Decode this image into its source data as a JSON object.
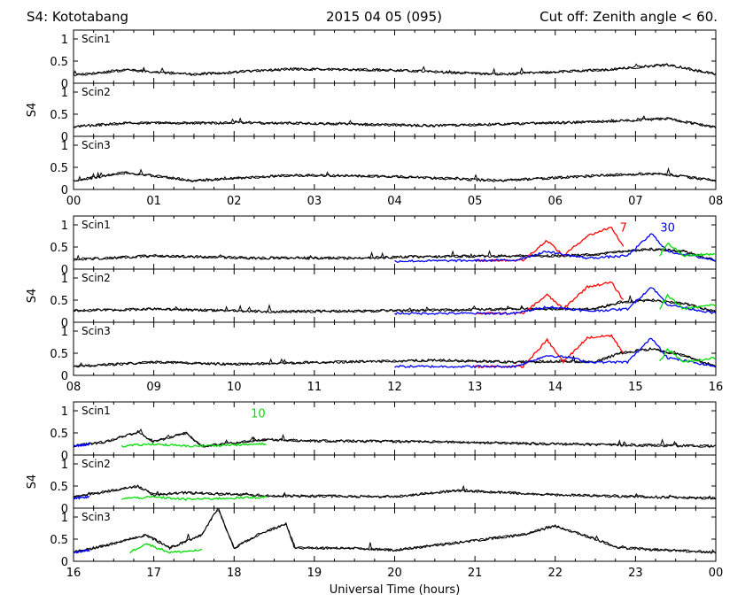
{
  "header": {
    "station": "S4: Kototabang",
    "date": "2015 04 05 (095)",
    "cutoff": "Cut off: Zenith angle < 60."
  },
  "chart_data": {
    "type": "line",
    "ylabel": "S4",
    "xlabel": "Universal Time (hours)",
    "ylim": [
      0,
      1.2
    ],
    "yticks": [
      "0",
      "0.5",
      "1"
    ],
    "colors": {
      "base": "#000000",
      "red": "#ff0000",
      "blue": "#0000ff",
      "green": "#00dd00"
    },
    "rows": [
      {
        "x_ticks": [
          "00",
          "01",
          "02",
          "03",
          "04",
          "05",
          "06",
          "07",
          "08"
        ],
        "x_range_hours": [
          0,
          8
        ],
        "annotations": [],
        "panels": [
          {
            "label": "Scin1",
            "baseline": 0.2,
            "base_points": [
              [
                0.0,
                0.18
              ],
              [
                0.65,
                0.3
              ],
              [
                1.5,
                0.2
              ],
              [
                2.7,
                0.32
              ],
              [
                3.9,
                0.3
              ],
              [
                5.3,
                0.2
              ],
              [
                6.6,
                0.3
              ],
              [
                7.4,
                0.42
              ],
              [
                8.0,
                0.2
              ]
            ],
            "colored": []
          },
          {
            "label": "Scin2",
            "baseline": 0.22,
            "base_points": [
              [
                0.0,
                0.22
              ],
              [
                0.65,
                0.3
              ],
              [
                2.7,
                0.3
              ],
              [
                4.5,
                0.24
              ],
              [
                6.6,
                0.33
              ],
              [
                7.4,
                0.4
              ],
              [
                8.0,
                0.2
              ]
            ],
            "colored": []
          },
          {
            "label": "Scin3",
            "baseline": 0.2,
            "base_points": [
              [
                0.0,
                0.2
              ],
              [
                0.65,
                0.38
              ],
              [
                1.5,
                0.2
              ],
              [
                2.7,
                0.32
              ],
              [
                3.9,
                0.3
              ],
              [
                5.3,
                0.2
              ],
              [
                6.6,
                0.32
              ],
              [
                7.3,
                0.36
              ],
              [
                8.0,
                0.2
              ]
            ],
            "colored": []
          }
        ]
      },
      {
        "x_ticks": [
          "08",
          "09",
          "10",
          "11",
          "12",
          "13",
          "14",
          "15",
          "16"
        ],
        "x_range_hours": [
          8,
          16
        ],
        "annotations": [
          {
            "text": "7",
            "color": "red",
            "x": 14.85,
            "y": 0.85
          },
          {
            "text": "30",
            "color": "blue",
            "x": 15.4,
            "y": 0.85
          }
        ],
        "panels": [
          {
            "label": "Scin1",
            "baseline": 0.2,
            "base_points": [
              [
                8.0,
                0.22
              ],
              [
                9.0,
                0.3
              ],
              [
                10.3,
                0.25
              ],
              [
                11.5,
                0.25
              ],
              [
                12.2,
                0.28
              ],
              [
                13.5,
                0.3
              ],
              [
                14.1,
                0.3
              ],
              [
                14.5,
                0.33
              ],
              [
                14.8,
                0.4
              ],
              [
                15.2,
                0.45
              ],
              [
                15.6,
                0.4
              ],
              [
                16.0,
                0.2
              ]
            ],
            "colored": [
              {
                "color": "red",
                "points": [
                  [
                    13.0,
                    0.2
                  ],
                  [
                    13.6,
                    0.2
                  ],
                  [
                    13.9,
                    0.65
                  ],
                  [
                    14.1,
                    0.3
                  ],
                  [
                    14.4,
                    0.75
                  ],
                  [
                    14.7,
                    0.95
                  ],
                  [
                    14.85,
                    0.5
                  ]
                ]
              },
              {
                "color": "blue",
                "points": [
                  [
                    12.0,
                    0.18
                  ],
                  [
                    13.5,
                    0.2
                  ],
                  [
                    13.9,
                    0.4
                  ],
                  [
                    14.2,
                    0.3
                  ],
                  [
                    14.4,
                    0.25
                  ],
                  [
                    14.9,
                    0.3
                  ],
                  [
                    15.2,
                    0.8
                  ],
                  [
                    15.4,
                    0.4
                  ],
                  [
                    16.0,
                    0.2
                  ]
                ]
              },
              {
                "color": "green",
                "points": [
                  [
                    15.3,
                    0.3
                  ],
                  [
                    15.4,
                    0.6
                  ],
                  [
                    15.6,
                    0.3
                  ],
                  [
                    16.0,
                    0.35
                  ]
                ]
              }
            ]
          },
          {
            "label": "Scin2",
            "baseline": 0.24,
            "base_points": [
              [
                8.0,
                0.26
              ],
              [
                9.0,
                0.3
              ],
              [
                10.5,
                0.24
              ],
              [
                12.0,
                0.26
              ],
              [
                13.5,
                0.3
              ],
              [
                14.1,
                0.3
              ],
              [
                14.5,
                0.3
              ],
              [
                14.8,
                0.45
              ],
              [
                15.2,
                0.5
              ],
              [
                15.6,
                0.42
              ],
              [
                16.0,
                0.24
              ]
            ],
            "colored": [
              {
                "color": "red",
                "points": [
                  [
                    13.0,
                    0.2
                  ],
                  [
                    13.6,
                    0.2
                  ],
                  [
                    13.9,
                    0.62
                  ],
                  [
                    14.1,
                    0.3
                  ],
                  [
                    14.4,
                    0.8
                  ],
                  [
                    14.7,
                    0.9
                  ],
                  [
                    14.85,
                    0.5
                  ]
                ]
              },
              {
                "color": "blue",
                "points": [
                  [
                    12.0,
                    0.2
                  ],
                  [
                    13.5,
                    0.2
                  ],
                  [
                    13.9,
                    0.35
                  ],
                  [
                    14.2,
                    0.3
                  ],
                  [
                    14.4,
                    0.25
                  ],
                  [
                    14.9,
                    0.3
                  ],
                  [
                    15.2,
                    0.8
                  ],
                  [
                    15.4,
                    0.4
                  ],
                  [
                    16.0,
                    0.2
                  ]
                ]
              },
              {
                "color": "green",
                "points": [
                  [
                    15.3,
                    0.3
                  ],
                  [
                    15.4,
                    0.6
                  ],
                  [
                    15.6,
                    0.3
                  ],
                  [
                    16.0,
                    0.4
                  ]
                ]
              }
            ]
          },
          {
            "label": "Scin3",
            "baseline": 0.2,
            "base_points": [
              [
                8.0,
                0.2
              ],
              [
                9.0,
                0.3
              ],
              [
                10.0,
                0.25
              ],
              [
                11.2,
                0.3
              ],
              [
                12.5,
                0.34
              ],
              [
                13.5,
                0.3
              ],
              [
                14.1,
                0.32
              ],
              [
                14.5,
                0.3
              ],
              [
                14.8,
                0.5
              ],
              [
                15.2,
                0.6
              ],
              [
                15.6,
                0.45
              ],
              [
                16.0,
                0.2
              ]
            ],
            "colored": [
              {
                "color": "red",
                "points": [
                  [
                    13.0,
                    0.2
                  ],
                  [
                    13.6,
                    0.2
                  ],
                  [
                    13.9,
                    0.8
                  ],
                  [
                    14.1,
                    0.3
                  ],
                  [
                    14.4,
                    0.85
                  ],
                  [
                    14.7,
                    0.9
                  ],
                  [
                    14.85,
                    0.5
                  ]
                ]
              },
              {
                "color": "blue",
                "points": [
                  [
                    12.0,
                    0.2
                  ],
                  [
                    13.5,
                    0.2
                  ],
                  [
                    13.9,
                    0.45
                  ],
                  [
                    14.2,
                    0.4
                  ],
                  [
                    14.4,
                    0.3
                  ],
                  [
                    14.9,
                    0.3
                  ],
                  [
                    15.2,
                    0.85
                  ],
                  [
                    15.4,
                    0.4
                  ],
                  [
                    16.0,
                    0.2
                  ]
                ]
              },
              {
                "color": "green",
                "points": [
                  [
                    15.3,
                    0.3
                  ],
                  [
                    15.4,
                    0.6
                  ],
                  [
                    15.6,
                    0.3
                  ],
                  [
                    16.0,
                    0.4
                  ]
                ]
              }
            ]
          }
        ]
      },
      {
        "x_ticks": [
          "16",
          "17",
          "18",
          "19",
          "20",
          "21",
          "22",
          "23",
          "00"
        ],
        "x_range_hours": [
          16,
          24
        ],
        "annotations": [
          {
            "text": "10",
            "color": "green",
            "x": 18.3,
            "y": 0.85
          }
        ],
        "panels": [
          {
            "label": "Scin1",
            "baseline": 0.2,
            "base_points": [
              [
                16.0,
                0.2
              ],
              [
                16.4,
                0.3
              ],
              [
                16.8,
                0.52
              ],
              [
                17.0,
                0.3
              ],
              [
                17.4,
                0.5
              ],
              [
                17.6,
                0.2
              ],
              [
                18.4,
                0.35
              ],
              [
                19.0,
                0.32
              ],
              [
                20.5,
                0.3
              ],
              [
                22.0,
                0.25
              ],
              [
                24.0,
                0.2
              ]
            ],
            "colored": [
              {
                "color": "blue",
                "points": [
                  [
                    16.0,
                    0.2
                  ],
                  [
                    16.2,
                    0.25
                  ]
                ]
              },
              {
                "color": "green",
                "points": [
                  [
                    16.6,
                    0.2
                  ],
                  [
                    17.0,
                    0.25
                  ],
                  [
                    17.4,
                    0.2
                  ],
                  [
                    18.4,
                    0.25
                  ]
                ]
              }
            ]
          },
          {
            "label": "Scin2",
            "baseline": 0.22,
            "base_points": [
              [
                16.0,
                0.25
              ],
              [
                16.8,
                0.5
              ],
              [
                17.0,
                0.3
              ],
              [
                17.4,
                0.35
              ],
              [
                18.5,
                0.28
              ],
              [
                20.0,
                0.26
              ],
              [
                20.8,
                0.4
              ],
              [
                22.0,
                0.3
              ],
              [
                24.0,
                0.22
              ]
            ],
            "colored": [
              {
                "color": "blue",
                "points": [
                  [
                    16.0,
                    0.22
                  ],
                  [
                    16.2,
                    0.25
                  ]
                ]
              },
              {
                "color": "green",
                "points": [
                  [
                    16.6,
                    0.22
                  ],
                  [
                    17.0,
                    0.25
                  ],
                  [
                    17.4,
                    0.2
                  ],
                  [
                    18.4,
                    0.25
                  ]
                ]
              }
            ]
          },
          {
            "label": "Scin3",
            "baseline": 0.2,
            "base_points": [
              [
                16.0,
                0.2
              ],
              [
                16.5,
                0.4
              ],
              [
                16.9,
                0.6
              ],
              [
                17.2,
                0.3
              ],
              [
                17.6,
                0.6
              ],
              [
                17.8,
                1.2
              ],
              [
                18.0,
                0.3
              ],
              [
                18.3,
                0.6
              ],
              [
                18.65,
                0.85
              ],
              [
                18.75,
                0.3
              ],
              [
                19.5,
                0.3
              ],
              [
                20.0,
                0.25
              ],
              [
                21.6,
                0.6
              ],
              [
                22.0,
                0.8
              ],
              [
                22.5,
                0.5
              ],
              [
                22.8,
                0.3
              ],
              [
                24.0,
                0.2
              ]
            ],
            "colored": [
              {
                "color": "blue",
                "points": [
                  [
                    16.0,
                    0.2
                  ],
                  [
                    16.2,
                    0.25
                  ]
                ]
              },
              {
                "color": "green",
                "points": [
                  [
                    16.7,
                    0.2
                  ],
                  [
                    16.9,
                    0.4
                  ],
                  [
                    17.2,
                    0.2
                  ],
                  [
                    17.6,
                    0.25
                  ]
                ]
              }
            ]
          }
        ]
      }
    ]
  }
}
